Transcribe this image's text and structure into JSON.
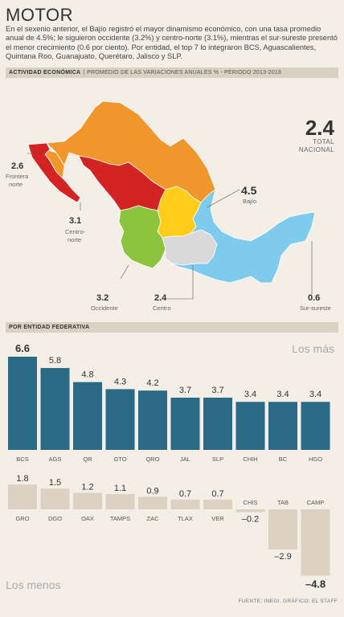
{
  "title": "MOTOR",
  "intro": "En el sexenio anterior, el Bajío registró el mayor dinamismo económico, con una tasa promedio anual de 4.5%; le siguieron occidente (3.2%) y centro-norte (3.1%), mientras el sur-sureste presentó el menor crecimiento (0.6 por ciento). Por entidad, el top 7 lo integraron BCS, Aguascalientes, Quintana Roo, Guanajuato, Querétaro, Jalisco y SLP.",
  "band1": {
    "strong": "ACTIVIDAD ECONÓMICA",
    "sep": "|",
    "light": "PROMEDIO DE LAS VARIACIONES ANUALES % - PERIODO 2013-2018"
  },
  "total": {
    "value": "2.4",
    "label_line1": "TOTAL",
    "label_line2": "NACIONAL"
  },
  "regions": [
    {
      "value": "2.6",
      "name_line1": "Frontera",
      "name_line2": "norte",
      "color": "#f0962a"
    },
    {
      "value": "3.1",
      "name_line1": "Centro-",
      "name_line2": "norte",
      "color": "#d32323"
    },
    {
      "value": "4.5",
      "name_line1": "Bajío",
      "name_line2": "",
      "color": "#ffcc1a"
    },
    {
      "value": "3.2",
      "name_line1": "Occidente",
      "name_line2": "",
      "color": "#8cc43f"
    },
    {
      "value": "2.4",
      "name_line1": "Centro",
      "name_line2": "",
      "color": "#d9d9d9"
    },
    {
      "value": "0.6",
      "name_line1": "Sur-sureste",
      "name_line2": "",
      "color": "#7ecbee"
    }
  ],
  "band2": {
    "strong": "POR ENTIDAD FEDERATIVA"
  },
  "los_mas": "Los más",
  "los_menos": "Los menos",
  "source": "FUENTE: INEGI. GRÁFICO: EL STAFF",
  "colors": {
    "top_bar": "#2a6a85",
    "bottom_bar": "#ddd1c1",
    "background": "#f3efe6",
    "band": "#d9d2c3"
  },
  "chart_data": [
    {
      "type": "bar",
      "title": "Los más",
      "categories": [
        "BCS",
        "AGS",
        "QR",
        "GTO",
        "QRO",
        "JAL",
        "SLP",
        "CHIH",
        "BC",
        "HGO"
      ],
      "values": [
        6.6,
        5.8,
        4.8,
        4.3,
        4.2,
        3.7,
        3.7,
        3.4,
        3.4,
        3.4
      ],
      "value_labels": [
        "6.6",
        "5.8",
        "4.8",
        "4.3",
        "4.2",
        "3.7",
        "3.7",
        "3.4",
        "3.4",
        "3.4"
      ],
      "ylim": [
        0,
        6.6
      ],
      "grid": false
    },
    {
      "type": "bar",
      "title": "Los menos",
      "categories": [
        "GRO",
        "DGO",
        "OAX",
        "TAMPS",
        "ZAC",
        "TLAX",
        "VER",
        "CHIS",
        "TAB",
        "CAMP"
      ],
      "values": [
        1.8,
        1.5,
        1.2,
        1.1,
        0.9,
        0.7,
        0.7,
        -0.2,
        -2.9,
        -4.8
      ],
      "value_labels": [
        "1.8",
        "1.5",
        "1.2",
        "1.1",
        "0.9",
        "0.7",
        "0.7",
        "–0.2",
        "–2.9",
        "–4.8"
      ],
      "ylim": [
        -4.8,
        1.8
      ],
      "grid": false
    }
  ]
}
